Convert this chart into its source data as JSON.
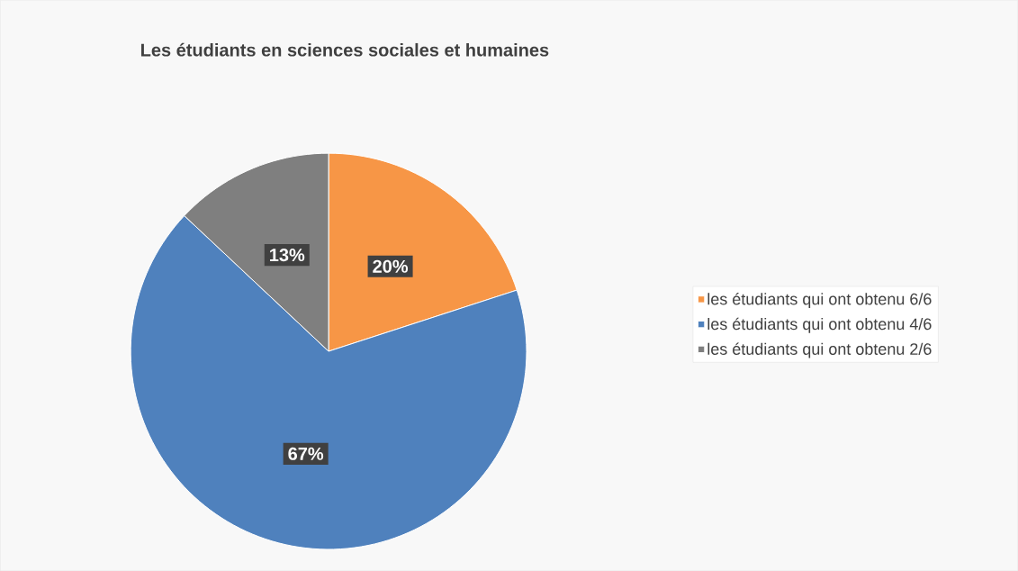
{
  "chart_data": {
    "type": "pie",
    "title": "Les étudiants en sciences sociales et humaines",
    "categories": [
      "les étudiants qui ont obtenu 6/6",
      "les étudiants qui ont obtenu 4/6",
      "les étudiants qui ont obtenu 2/6"
    ],
    "values": [
      20,
      67,
      13
    ],
    "colors": [
      "#f79646",
      "#4f81bd",
      "#7f7f7f"
    ],
    "value_labels": [
      "20%",
      "67%",
      "13%"
    ],
    "legend": "right"
  }
}
